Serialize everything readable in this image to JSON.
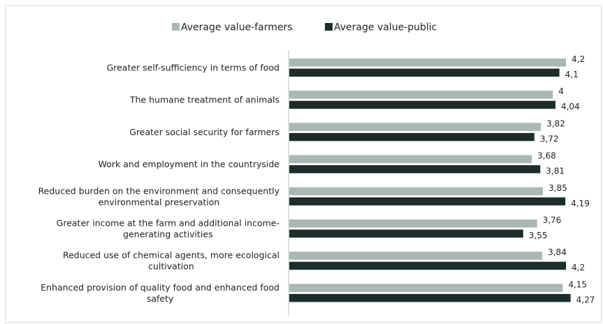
{
  "chart_data": {
    "type": "bar",
    "orientation": "horizontal",
    "categories": [
      [
        "Greater self-sufficiency in terms of food"
      ],
      [
        "The humane treatment of animals"
      ],
      [
        "Greater social security for farmers"
      ],
      [
        "Work and employment in the countryside"
      ],
      [
        "Reduced burden on the environment and consequently",
        "environmental preservation"
      ],
      [
        "Greater income at the farm and additional income-",
        "generating activities"
      ],
      [
        "Reduced use of chemical agents, more ecological",
        "cultivation"
      ],
      [
        "Enhanced provision of quality food and enhanced food",
        "safety"
      ]
    ],
    "series": [
      {
        "name": "Average value-farmers",
        "color": "#a9b8b3",
        "values": [
          4.2,
          4,
          3.82,
          3.68,
          3.85,
          3.76,
          3.84,
          4.15
        ],
        "labels": [
          "4,2",
          "4",
          "3,82",
          "3,68",
          "3,85",
          "3,76",
          "3,84",
          "4,15"
        ]
      },
      {
        "name": "Average value-public",
        "color": "#1b2e2b",
        "values": [
          4.1,
          4.04,
          3.72,
          3.81,
          4.19,
          3.55,
          4.2,
          4.27
        ],
        "labels": [
          "4,1",
          "4,04",
          "3,72",
          "3,81",
          "4,19",
          "3,55",
          "4,2",
          "4,27"
        ]
      }
    ],
    "xlim": [
      0,
      4.38
    ],
    "legend_position": "top-center",
    "grid": false,
    "title": "",
    "xlabel": "",
    "ylabel": ""
  }
}
